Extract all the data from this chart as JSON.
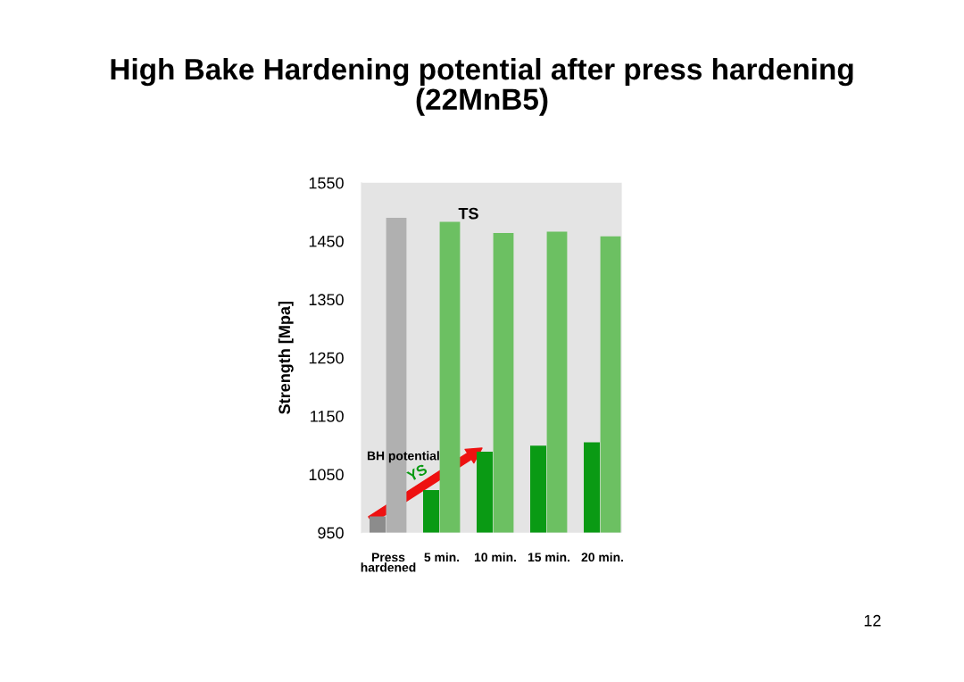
{
  "chart_data": {
    "type": "bar",
    "title": "High Bake Hardening potential after press hardening\n(22MnB5)",
    "ylabel": "Strength [Mpa]",
    "categories": [
      "Press\nhardened",
      "5 min.",
      "10 min.",
      "15 min.",
      "20 min."
    ],
    "series": [
      {
        "name": "YS",
        "colors": [
          "#8c8c8c",
          "#0a9a14",
          "#0a9a14",
          "#0a9a14",
          "#0a9a14"
        ],
        "values": [
          978,
          1023,
          1089,
          1099,
          1105
        ]
      },
      {
        "name": "TS",
        "colors": [
          "#b0b0b0",
          "#6cc062",
          "#6cc062",
          "#6cc062",
          "#6cc062"
        ],
        "values": [
          1490,
          1483,
          1464,
          1466,
          1458
        ]
      }
    ],
    "ylim": [
      950,
      1550
    ],
    "yticks": [
      950,
      1050,
      1150,
      1250,
      1350,
      1450,
      1550
    ],
    "grid": false,
    "legend": false,
    "annotations": [
      "BH potential",
      "12"
    ]
  }
}
